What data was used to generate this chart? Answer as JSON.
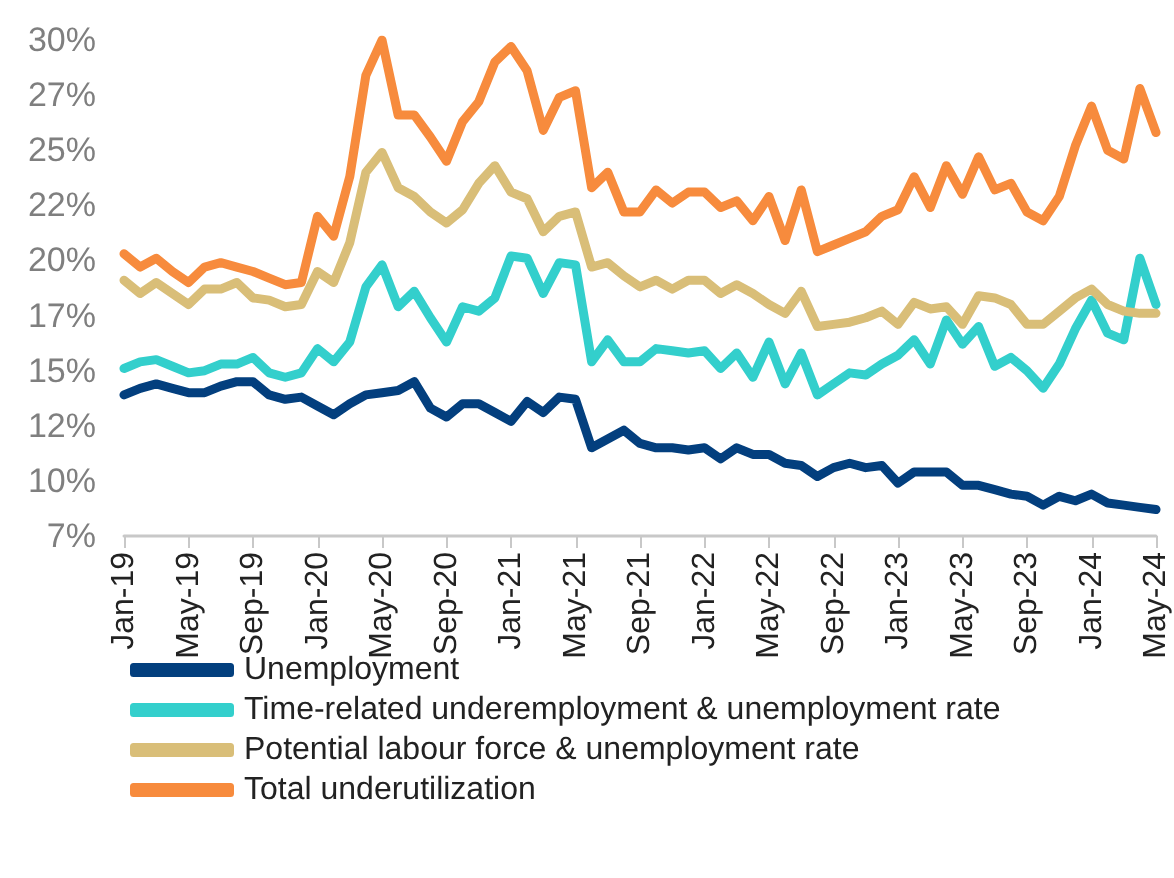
{
  "chart_data": {
    "type": "line",
    "categories": [
      "Jan-19",
      null,
      null,
      null,
      "May-19",
      null,
      null,
      null,
      "Sep-19",
      null,
      null,
      null,
      "Jan-20",
      null,
      null,
      null,
      "May-20",
      null,
      null,
      null,
      "Sep-20",
      null,
      null,
      null,
      "Jan-21",
      null,
      null,
      null,
      "May-21",
      null,
      null,
      null,
      "Sep-21",
      null,
      null,
      null,
      "Jan-22",
      null,
      null,
      null,
      "May-22",
      null,
      null,
      null,
      "Sep-22",
      null,
      null,
      null,
      "Jan-23",
      null,
      null,
      null,
      "May-23",
      null,
      null,
      null,
      "Sep-23",
      null,
      null,
      null,
      "Jan-24",
      null,
      null,
      null,
      "May-24"
    ],
    "series": [
      {
        "name": "Unemployment",
        "color": "#033f7e",
        "values": [
          13.9,
          14.2,
          14.4,
          14.2,
          14.0,
          14.0,
          14.3,
          14.5,
          14.5,
          13.9,
          13.7,
          13.8,
          13.4,
          13.0,
          13.5,
          13.9,
          14.0,
          14.1,
          14.5,
          13.3,
          12.9,
          13.5,
          13.5,
          13.1,
          12.7,
          13.6,
          13.1,
          13.8,
          13.7,
          11.5,
          11.9,
          12.3,
          11.7,
          11.5,
          11.5,
          11.4,
          11.5,
          11.0,
          11.5,
          11.2,
          11.2,
          10.8,
          10.7,
          10.2,
          10.6,
          10.8,
          10.6,
          10.7,
          9.9,
          10.4,
          10.4,
          10.4,
          9.8,
          9.8,
          9.6,
          9.4,
          9.3,
          8.9,
          9.3,
          9.1,
          9.4,
          9.0,
          8.9,
          8.8,
          8.7
        ]
      },
      {
        "name": "Time-related underemployment & unemployment rate",
        "color": "#33cfcc",
        "values": [
          15.1,
          15.4,
          15.5,
          15.2,
          14.9,
          15.0,
          15.3,
          15.3,
          15.6,
          14.9,
          14.7,
          14.9,
          16.0,
          15.4,
          16.3,
          18.8,
          19.8,
          17.9,
          18.6,
          17.4,
          16.3,
          17.9,
          17.7,
          18.3,
          20.2,
          20.1,
          18.5,
          19.9,
          19.8,
          15.4,
          16.4,
          15.4,
          15.4,
          16.0,
          15.9,
          15.8,
          15.9,
          15.1,
          15.8,
          14.7,
          16.3,
          14.4,
          15.8,
          13.9,
          14.4,
          14.9,
          14.8,
          15.3,
          15.7,
          16.4,
          15.3,
          17.3,
          16.2,
          17.0,
          15.2,
          15.6,
          15.0,
          14.2,
          15.3,
          16.9,
          18.2,
          16.7,
          16.4,
          20.1,
          18.0
        ]
      },
      {
        "name": "Potential labour force & unemployment rate",
        "color": "#d9be78",
        "values": [
          19.1,
          18.5,
          19.0,
          18.5,
          18.0,
          18.7,
          18.7,
          19.0,
          18.3,
          18.2,
          17.9,
          18.0,
          19.5,
          19.0,
          20.8,
          24.0,
          24.9,
          23.3,
          22.9,
          22.2,
          21.7,
          22.3,
          23.5,
          24.3,
          23.1,
          22.8,
          21.3,
          22.0,
          22.2,
          19.7,
          19.9,
          19.3,
          18.8,
          19.1,
          18.7,
          19.1,
          19.1,
          18.5,
          18.9,
          18.5,
          18.0,
          17.6,
          18.6,
          17.0,
          17.1,
          17.2,
          17.4,
          17.7,
          17.1,
          18.1,
          17.8,
          17.9,
          17.1,
          18.4,
          18.3,
          18.0,
          17.1,
          17.1,
          17.7,
          18.3,
          18.7,
          18.0,
          17.7,
          17.6,
          17.6
        ]
      },
      {
        "name": "Total underutilization",
        "color": "#f78b3d",
        "values": [
          20.3,
          19.7,
          20.1,
          19.5,
          19.0,
          19.7,
          19.9,
          19.7,
          19.5,
          19.2,
          18.9,
          19.0,
          22.0,
          21.1,
          23.8,
          28.4,
          30.0,
          26.6,
          26.6,
          25.6,
          24.5,
          26.3,
          27.2,
          29.0,
          29.7,
          28.6,
          25.9,
          27.4,
          27.7,
          23.3,
          24.0,
          22.2,
          22.2,
          23.2,
          22.6,
          23.1,
          23.1,
          22.4,
          22.7,
          21.8,
          22.9,
          20.9,
          23.2,
          20.4,
          20.7,
          21.0,
          21.3,
          22.0,
          22.3,
          23.8,
          22.4,
          24.3,
          23.0,
          24.7,
          23.2,
          23.5,
          22.2,
          21.8,
          22.9,
          25.2,
          27.0,
          25.0,
          24.6,
          27.8,
          25.8
        ]
      }
    ],
    "ylim": [
      7.5,
      30
    ],
    "yticks": [
      {
        "value": 7.5,
        "label": "7%"
      },
      {
        "value": 10,
        "label": "10%"
      },
      {
        "value": 12.5,
        "label": "12%"
      },
      {
        "value": 15,
        "label": "15%"
      },
      {
        "value": 17.5,
        "label": "17%"
      },
      {
        "value": 20,
        "label": "20%"
      },
      {
        "value": 22.5,
        "label": "22%"
      },
      {
        "value": 25,
        "label": "25%"
      },
      {
        "value": 27.5,
        "label": "27%"
      },
      {
        "value": 30,
        "label": "30%"
      }
    ],
    "grid": false,
    "legend": "bottom",
    "marker": "none",
    "line_style": "solid"
  }
}
